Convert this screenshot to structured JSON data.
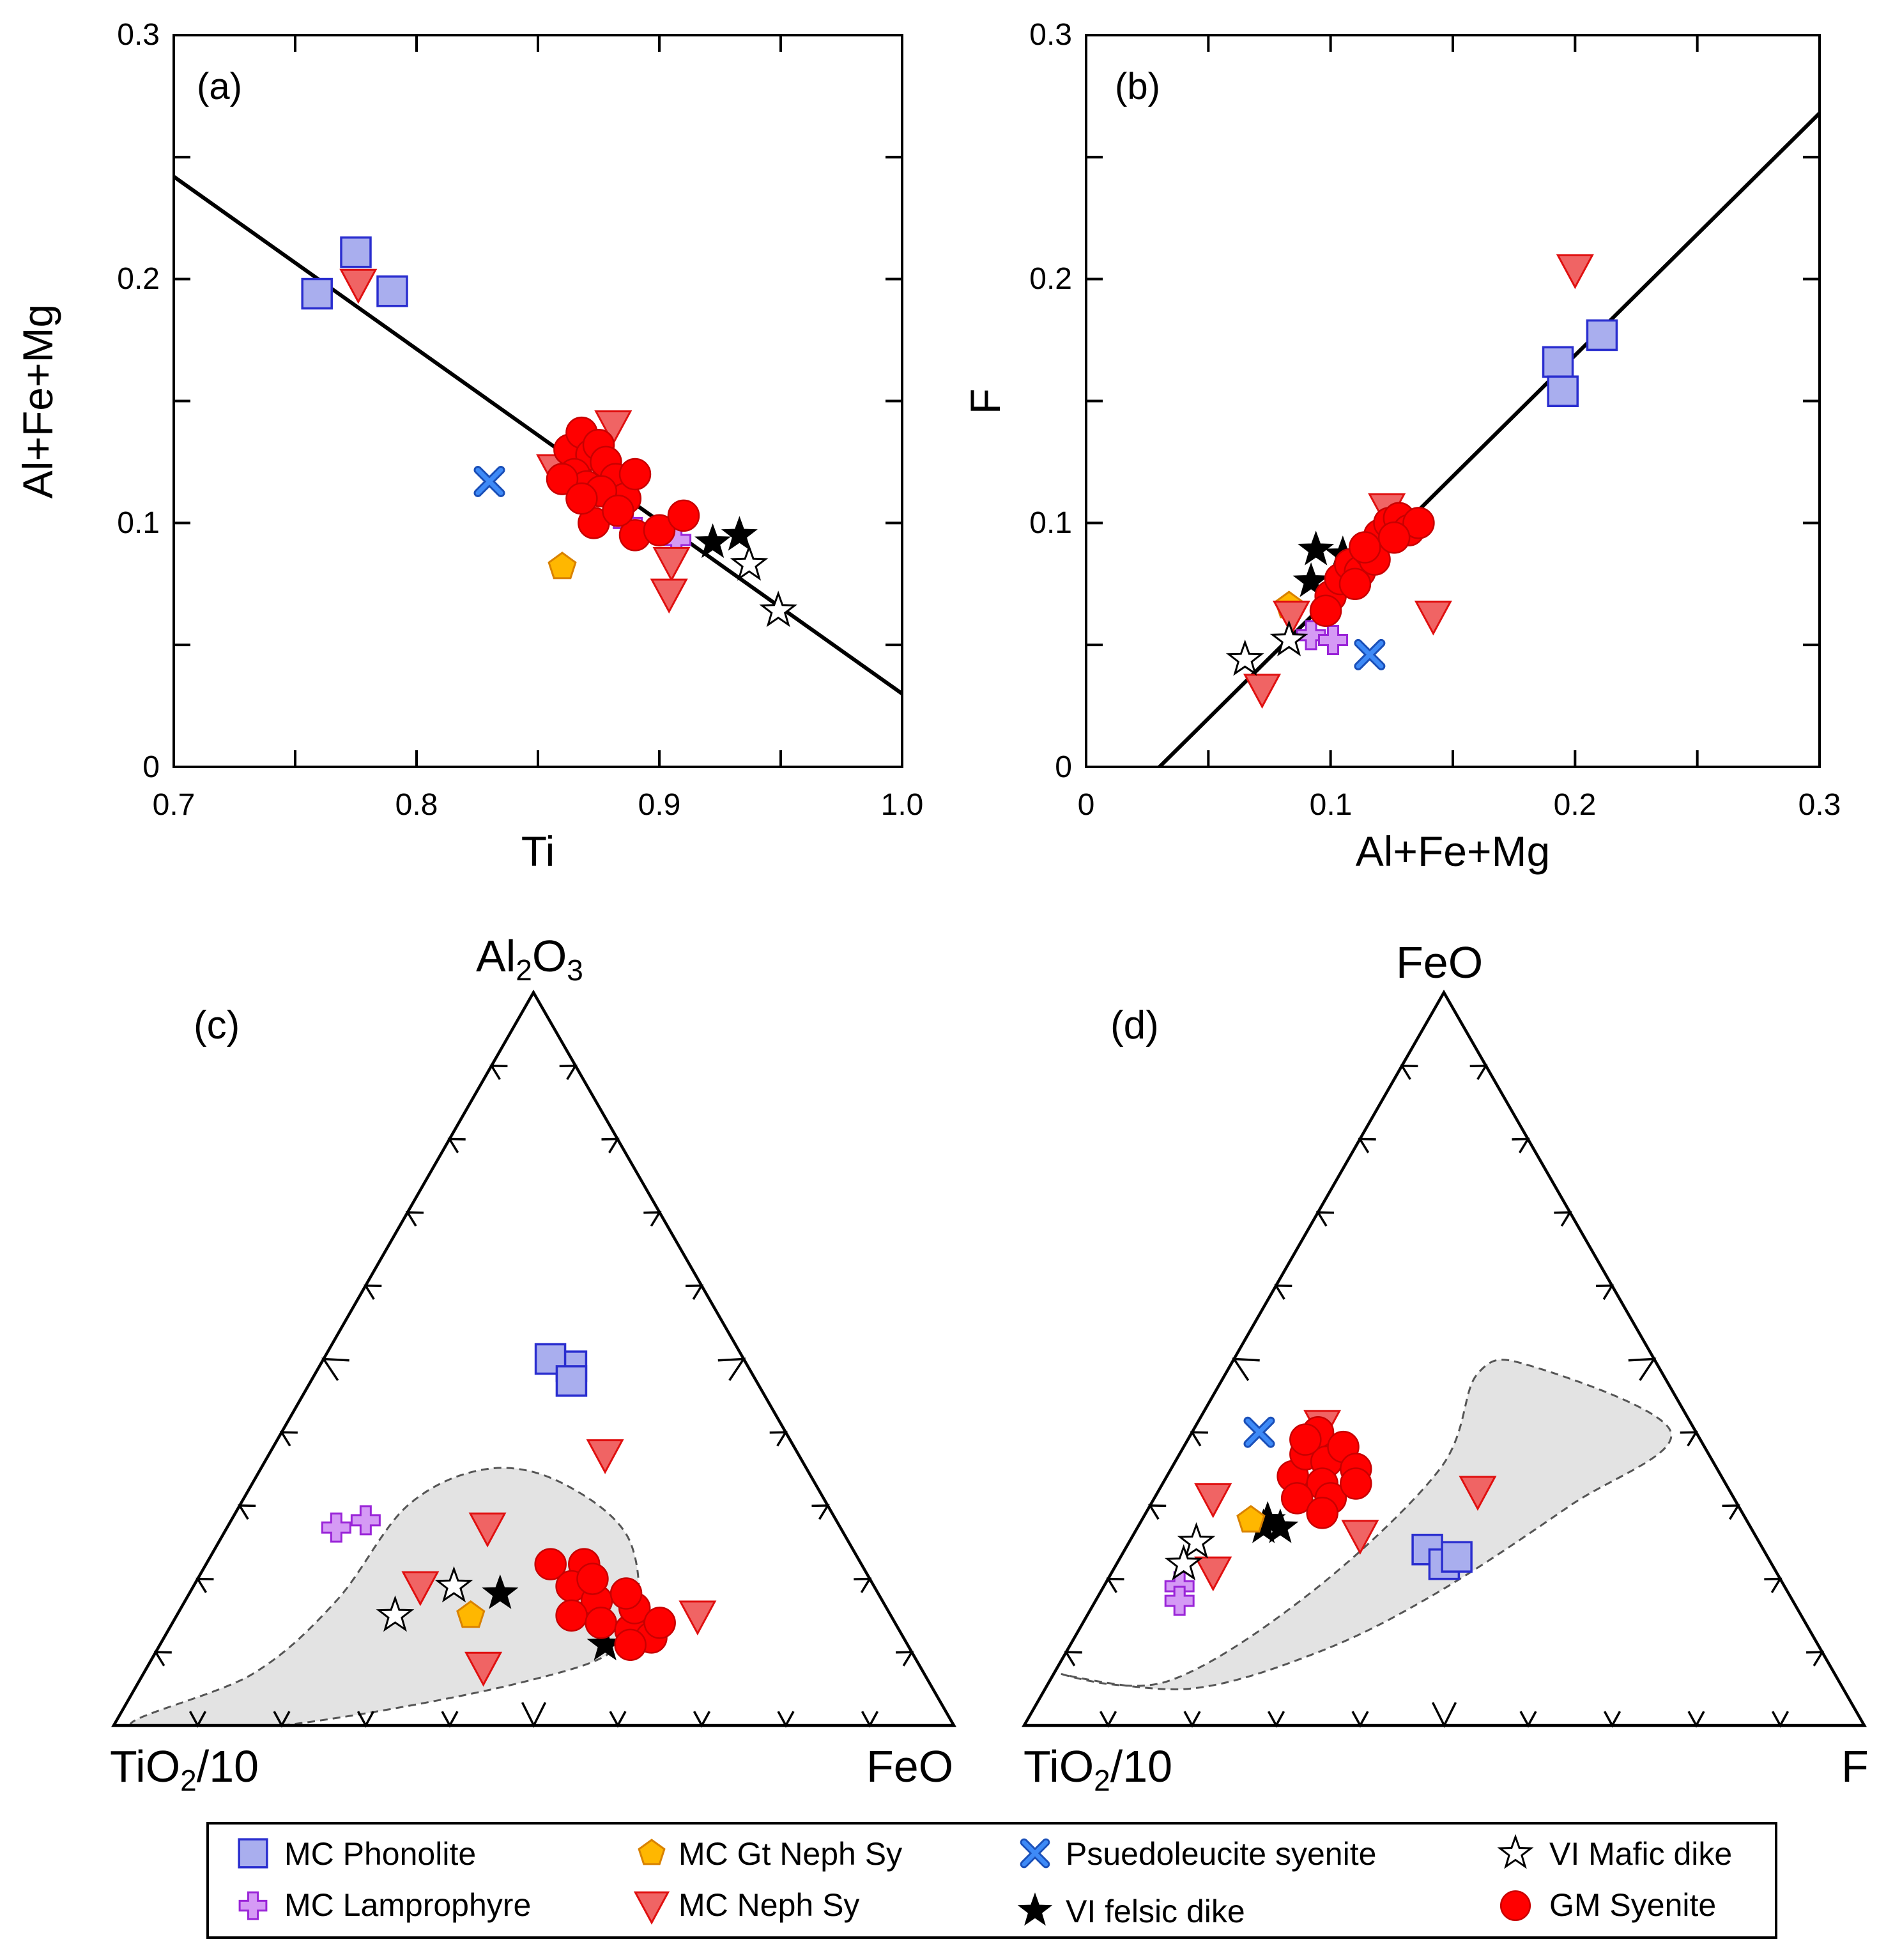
{
  "colors": {
    "phonolite": "#a9aeee",
    "phonolite_edge": "#2a2ecf",
    "lamprophyre": "#d59af5",
    "lamprophyre_edge": "#9a25d8",
    "gtneph": "#ffb700",
    "gtneph_edge": "#d98200",
    "nephsy": "#f06464",
    "nephsy_edge": "#e01010",
    "pseudo": "#3e8af7",
    "gm": "#ff0000",
    "gm_edge": "#c80000",
    "field": "#e3e3e3"
  },
  "legend": [
    {
      "key": "phonolite",
      "label": "MC Phonolite"
    },
    {
      "key": "lamprophyre",
      "label": "MC Lamprophyre"
    },
    {
      "key": "gtneph",
      "label": "MC Gt Neph Sy"
    },
    {
      "key": "nephsy",
      "label": "MC Neph Sy"
    },
    {
      "key": "pseudo",
      "label": "Psuedoleucite syenite"
    },
    {
      "key": "felsic",
      "label": "VI felsic dike"
    },
    {
      "key": "mafic",
      "label": "VI Mafic dike"
    },
    {
      "key": "gm",
      "label": "GM Syenite"
    }
  ],
  "chart_data": [
    {
      "id": "a",
      "type": "scatter",
      "panel_label": "(a)",
      "xlabel": "Ti",
      "ylabel": "Al+Fe+Mg",
      "xlim": [
        0.7,
        1.0
      ],
      "ylim": [
        0,
        0.3
      ],
      "xticks": [
        "0.7",
        "0.8",
        "0.9",
        "1.0"
      ],
      "yticks": [
        "0",
        "0.1",
        "0.2",
        "0.3"
      ],
      "fit_line": [
        [
          0.7,
          0.242
        ],
        [
          1.0,
          0.03
        ]
      ],
      "series": [
        {
          "name": "MC Phonolite",
          "points": [
            [
              0.759,
              0.194
            ],
            [
              0.775,
              0.211
            ],
            [
              0.79,
              0.195
            ]
          ]
        },
        {
          "name": "MC Lamprophyre",
          "points": [
            [
              0.887,
              0.1
            ],
            [
              0.907,
              0.093
            ]
          ]
        },
        {
          "name": "MC Gt Neph Sy",
          "points": [
            [
              0.86,
              0.082
            ]
          ]
        },
        {
          "name": "MC Neph Sy",
          "points": [
            [
              0.776,
              0.198
            ],
            [
              0.881,
              0.14
            ],
            [
              0.857,
              0.122
            ],
            [
              0.905,
              0.084
            ],
            [
              0.904,
              0.071
            ]
          ]
        },
        {
          "name": "Psuedoleucite syenite",
          "points": [
            [
              0.83,
              0.117
            ]
          ]
        },
        {
          "name": "VI felsic dike",
          "points": [
            [
              0.922,
              0.092
            ],
            [
              0.933,
              0.095
            ],
            [
              0.88,
              0.108
            ]
          ]
        },
        {
          "name": "VI Mafic dike",
          "points": [
            [
              0.937,
              0.083
            ],
            [
              0.949,
              0.064
            ]
          ]
        },
        {
          "name": "GM Syenite",
          "points": [
            [
              0.863,
              0.13
            ],
            [
              0.868,
              0.137
            ],
            [
              0.872,
              0.128
            ],
            [
              0.875,
              0.132
            ],
            [
              0.865,
              0.12
            ],
            [
              0.87,
              0.115
            ],
            [
              0.86,
              0.118
            ],
            [
              0.878,
              0.125
            ],
            [
              0.882,
              0.118
            ],
            [
              0.886,
              0.11
            ],
            [
              0.89,
              0.12
            ],
            [
              0.873,
              0.1
            ],
            [
              0.89,
              0.095
            ],
            [
              0.9,
              0.097
            ],
            [
              0.91,
              0.103
            ],
            [
              0.876,
              0.113
            ],
            [
              0.883,
              0.105
            ],
            [
              0.868,
              0.11
            ]
          ]
        }
      ]
    },
    {
      "id": "b",
      "type": "scatter",
      "panel_label": "(b)",
      "xlabel": "Al+Fe+Mg",
      "ylabel": "F",
      "xlim": [
        0,
        0.3
      ],
      "ylim": [
        0,
        0.3
      ],
      "xticks": [
        "0",
        "0.1",
        "0.2",
        "0.3"
      ],
      "yticks": [
        "0",
        "0.1",
        "0.2",
        "0.3"
      ],
      "fit_line": [
        [
          0.03,
          0.0
        ],
        [
          0.3,
          0.268
        ]
      ],
      "series": [
        {
          "name": "MC Phonolite",
          "points": [
            [
              0.193,
              0.166
            ],
            [
              0.195,
              0.154
            ],
            [
              0.211,
              0.177
            ]
          ]
        },
        {
          "name": "MC Lamprophyre",
          "points": [
            [
              0.092,
              0.054
            ],
            [
              0.101,
              0.052
            ]
          ]
        },
        {
          "name": "MC Gt Neph Sy",
          "points": [
            [
              0.083,
              0.066
            ]
          ]
        },
        {
          "name": "MC Neph Sy",
          "points": [
            [
              0.2,
              0.204
            ],
            [
              0.142,
              0.062
            ],
            [
              0.072,
              0.032
            ],
            [
              0.084,
              0.062
            ],
            [
              0.123,
              0.106
            ]
          ]
        },
        {
          "name": "Psuedoleucite syenite",
          "points": [
            [
              0.116,
              0.046
            ]
          ]
        },
        {
          "name": "VI felsic dike",
          "points": [
            [
              0.092,
              0.076
            ],
            [
              0.094,
              0.089
            ],
            [
              0.105,
              0.087
            ]
          ]
        },
        {
          "name": "VI Mafic dike",
          "points": [
            [
              0.065,
              0.044
            ],
            [
              0.083,
              0.052
            ]
          ]
        },
        {
          "name": "GM Syenite",
          "points": [
            [
              0.1,
              0.07
            ],
            [
              0.104,
              0.077
            ],
            [
              0.108,
              0.083
            ],
            [
              0.112,
              0.08
            ],
            [
              0.116,
              0.088
            ],
            [
              0.12,
              0.095
            ],
            [
              0.124,
              0.1
            ],
            [
              0.128,
              0.102
            ],
            [
              0.132,
              0.097
            ],
            [
              0.136,
              0.1
            ],
            [
              0.118,
              0.085
            ],
            [
              0.11,
              0.075
            ],
            [
              0.098,
              0.064
            ],
            [
              0.126,
              0.094
            ],
            [
              0.114,
              0.09
            ]
          ]
        }
      ]
    },
    {
      "id": "c",
      "type": "ternary",
      "panel_label": "(c)",
      "apex_top": "Al2O3",
      "apex_left": "TiO2/10",
      "apex_right": "FeO",
      "components": [
        "top",
        "left",
        "right"
      ],
      "field_outline": [
        [
          0,
          0.98,
          0.02
        ],
        [
          0.07,
          0.8,
          0.13
        ],
        [
          0.17,
          0.65,
          0.18
        ],
        [
          0.3,
          0.5,
          0.2
        ],
        [
          0.35,
          0.38,
          0.27
        ],
        [
          0.33,
          0.3,
          0.37
        ],
        [
          0.25,
          0.26,
          0.49
        ],
        [
          0.12,
          0.33,
          0.55
        ],
        [
          0.06,
          0.48,
          0.46
        ],
        [
          0.0,
          0.8,
          0.2
        ]
      ],
      "series": [
        {
          "name": "MC Phonolite",
          "points": [
            [
              0.49,
              0.21,
              0.3
            ],
            [
              0.5,
              0.23,
              0.27
            ],
            [
              0.47,
              0.22,
              0.31
            ]
          ]
        },
        {
          "name": "MC Lamprophyre",
          "points": [
            [
              0.27,
              0.6,
              0.13
            ],
            [
              0.28,
              0.56,
              0.16
            ]
          ]
        },
        {
          "name": "MC Neph Sy",
          "points": [
            [
              0.37,
              0.23,
              0.4
            ],
            [
              0.27,
              0.42,
              0.31
            ],
            [
              0.19,
              0.54,
              0.27
            ],
            [
              0.08,
              0.52,
              0.4
            ],
            [
              0.15,
              0.23,
              0.62
            ]
          ]
        },
        {
          "name": "MC Gt Neph Sy",
          "points": [
            [
              0.15,
              0.5,
              0.35
            ]
          ]
        },
        {
          "name": "VI felsic dike",
          "points": [
            [
              0.18,
              0.45,
              0.37
            ],
            [
              0.11,
              0.36,
              0.53
            ]
          ]
        },
        {
          "name": "VI Mafic dike",
          "points": [
            [
              0.19,
              0.5,
              0.31
            ],
            [
              0.15,
              0.59,
              0.26
            ]
          ]
        },
        {
          "name": "GM Syenite",
          "points": [
            [
              0.22,
              0.37,
              0.41
            ],
            [
              0.22,
              0.33,
              0.45
            ],
            [
              0.19,
              0.36,
              0.45
            ],
            [
              0.17,
              0.34,
              0.49
            ],
            [
              0.15,
              0.38,
              0.47
            ],
            [
              0.14,
              0.35,
              0.51
            ],
            [
              0.13,
              0.32,
              0.55
            ],
            [
              0.16,
              0.3,
              0.54
            ],
            [
              0.18,
              0.3,
              0.52
            ],
            [
              0.12,
              0.3,
              0.58
            ],
            [
              0.14,
              0.28,
              0.58
            ],
            [
              0.2,
              0.33,
              0.47
            ],
            [
              0.11,
              0.33,
              0.56
            ]
          ]
        }
      ]
    },
    {
      "id": "d",
      "type": "ternary",
      "panel_label": "(d)",
      "apex_top": "FeO",
      "apex_left": "TiO2/10",
      "apex_right": "F",
      "components": [
        "top",
        "left",
        "right"
      ],
      "field_outline": [
        [
          0.07,
          0.92,
          0.01
        ],
        [
          0.06,
          0.8,
          0.14
        ],
        [
          0.18,
          0.57,
          0.25
        ],
        [
          0.35,
          0.33,
          0.32
        ],
        [
          0.48,
          0.22,
          0.3
        ],
        [
          0.49,
          0.15,
          0.36
        ],
        [
          0.4,
          0.03,
          0.57
        ],
        [
          0.3,
          0.2,
          0.5
        ],
        [
          0.18,
          0.42,
          0.4
        ],
        [
          0.1,
          0.6,
          0.3
        ],
        [
          0.05,
          0.78,
          0.17
        ]
      ],
      "series": [
        {
          "name": "MC Phonolite",
          "points": [
            [
              0.24,
              0.4,
              0.36
            ],
            [
              0.22,
              0.39,
              0.39
            ],
            [
              0.23,
              0.37,
              0.4
            ]
          ]
        },
        {
          "name": "MC Lamprophyre",
          "points": [
            [
              0.19,
              0.72,
              0.09
            ],
            [
              0.17,
              0.73,
              0.1
            ]
          ]
        },
        {
          "name": "MC Neph Sy",
          "points": [
            [
              0.41,
              0.44,
              0.15
            ],
            [
              0.31,
              0.62,
              0.07
            ],
            [
              0.26,
              0.47,
              0.27
            ],
            [
              0.21,
              0.67,
              0.12
            ],
            [
              0.32,
              0.3,
              0.38
            ]
          ]
        },
        {
          "name": "MC Gt Neph Sy",
          "points": [
            [
              0.28,
              0.59,
              0.13
            ]
          ]
        },
        {
          "name": "Psuedoleucite syenite",
          "points": [
            [
              0.4,
              0.52,
              0.08
            ]
          ]
        },
        {
          "name": "VI felsic dike",
          "points": [
            [
              0.27,
              0.58,
              0.15
            ],
            [
              0.27,
              0.56,
              0.17
            ],
            [
              0.28,
              0.57,
              0.15
            ]
          ]
        },
        {
          "name": "VI Mafic dike",
          "points": [
            [
              0.25,
              0.67,
              0.08
            ],
            [
              0.22,
              0.7,
              0.08
            ]
          ]
        },
        {
          "name": "GM Syenite",
          "points": [
            [
              0.34,
              0.51,
              0.15
            ],
            [
              0.37,
              0.48,
              0.15
            ],
            [
              0.4,
              0.45,
              0.15
            ],
            [
              0.36,
              0.46,
              0.18
            ],
            [
              0.33,
              0.48,
              0.19
            ],
            [
              0.31,
              0.52,
              0.17
            ],
            [
              0.38,
              0.43,
              0.19
            ],
            [
              0.35,
              0.43,
              0.22
            ],
            [
              0.31,
              0.48,
              0.21
            ],
            [
              0.33,
              0.44,
              0.23
            ],
            [
              0.29,
              0.5,
              0.21
            ],
            [
              0.39,
              0.47,
              0.14
            ]
          ]
        }
      ]
    }
  ]
}
